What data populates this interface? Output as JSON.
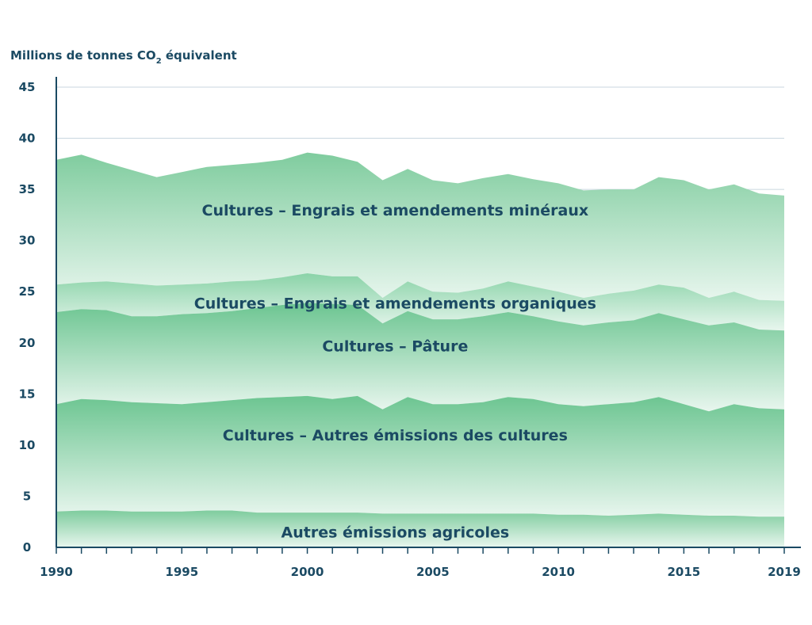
{
  "chart_data": {
    "type": "area",
    "stacked": true,
    "ylabel": {
      "prefix": "Millions de tonnes CO",
      "subscript": "2",
      "suffix": " équivalent"
    },
    "ylim": [
      0,
      45
    ],
    "yticks": [
      0,
      5,
      10,
      15,
      20,
      25,
      30,
      35,
      40,
      45
    ],
    "xlim": [
      1990,
      2019
    ],
    "xticks": [
      1990,
      1995,
      2000,
      2005,
      2010,
      2015,
      2019
    ],
    "x": [
      1990,
      1991,
      1992,
      1993,
      1994,
      1995,
      1996,
      1997,
      1998,
      1999,
      2000,
      2001,
      2002,
      2003,
      2004,
      2005,
      2006,
      2007,
      2008,
      2009,
      2010,
      2011,
      2012,
      2013,
      2014,
      2015,
      2016,
      2017,
      2018,
      2019
    ],
    "grid": true,
    "legend": "inline",
    "series": [
      {
        "name": "Autres émissions agricoles",
        "color": "#7fcc9e",
        "cumulative": [
          3.5,
          3.6,
          3.6,
          3.5,
          3.5,
          3.5,
          3.6,
          3.6,
          3.4,
          3.4,
          3.4,
          3.4,
          3.4,
          3.3,
          3.3,
          3.3,
          3.3,
          3.3,
          3.3,
          3.3,
          3.2,
          3.2,
          3.1,
          3.2,
          3.3,
          3.2,
          3.1,
          3.1,
          3.0,
          3.0
        ]
      },
      {
        "name": "Cultures – Autres émissions des cultures",
        "color": "#6cc591",
        "cumulative": [
          14.0,
          14.5,
          14.4,
          14.2,
          14.1,
          14.0,
          14.2,
          14.4,
          14.6,
          14.7,
          14.8,
          14.5,
          14.8,
          13.5,
          14.7,
          14.0,
          14.0,
          14.2,
          14.7,
          14.5,
          14.0,
          13.8,
          14.0,
          14.2,
          14.7,
          14.0,
          13.3,
          14.0,
          13.6,
          13.5
        ]
      },
      {
        "name": "Cultures – Pâture",
        "color": "#6cc591",
        "cumulative": [
          23.0,
          23.3,
          23.2,
          22.6,
          22.6,
          22.8,
          22.9,
          23.1,
          23.4,
          23.7,
          23.9,
          23.8,
          23.7,
          21.9,
          23.1,
          22.3,
          22.3,
          22.6,
          23.0,
          22.6,
          22.1,
          21.7,
          22.0,
          22.2,
          22.9,
          22.3,
          21.7,
          22.0,
          21.3,
          21.2
        ]
      },
      {
        "name": "Cultures – Engrais et amendements organiques",
        "color": "#8ad3a8",
        "cumulative": [
          25.7,
          25.9,
          26.0,
          25.8,
          25.6,
          25.7,
          25.8,
          26.0,
          26.1,
          26.4,
          26.8,
          26.5,
          26.5,
          24.4,
          26.0,
          25.0,
          24.9,
          25.3,
          26.0,
          25.5,
          25.0,
          24.4,
          24.8,
          25.1,
          25.7,
          25.4,
          24.4,
          25.0,
          24.2,
          24.1
        ]
      },
      {
        "name": "Cultures – Engrais et amendements minéraux",
        "color": "#7fcc9e",
        "cumulative": [
          37.9,
          38.4,
          37.6,
          36.9,
          36.2,
          36.7,
          37.2,
          37.4,
          37.6,
          37.9,
          38.6,
          38.3,
          37.7,
          35.9,
          37.0,
          35.9,
          35.6,
          36.1,
          36.5,
          36.0,
          35.6,
          34.9,
          35.0,
          35.0,
          36.2,
          35.9,
          35.0,
          35.5,
          34.6,
          34.4
        ]
      }
    ],
    "labels": [
      {
        "text": "Cultures – Engrais et amendements minéraux",
        "x": 2003.5,
        "y": 33.0
      },
      {
        "text": "Cultures – Engrais et amendements organiques",
        "x": 2003.5,
        "y": 23.9
      },
      {
        "text": "Cultures – Pâture",
        "x": 2003.5,
        "y": 19.7
      },
      {
        "text": "Cultures – Autres émissions des cultures",
        "x": 2003.5,
        "y": 11.0
      },
      {
        "text": "Autres émissions agricoles",
        "x": 2003.5,
        "y": 1.5
      }
    ]
  }
}
